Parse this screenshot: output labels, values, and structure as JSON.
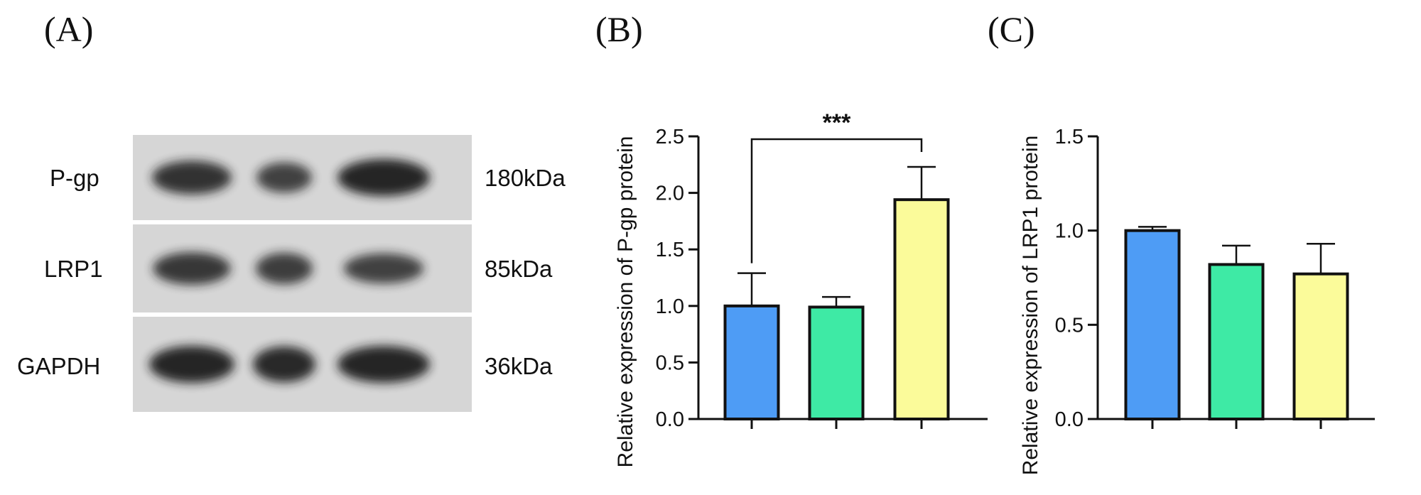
{
  "panels": {
    "a": "(A)",
    "b": "(B)",
    "c": "(C)"
  },
  "blot": {
    "rows": [
      {
        "protein": "P-gp",
        "size": "180kDa",
        "intensities": [
          0.85,
          0.7,
          1.0
        ]
      },
      {
        "protein": "LRP1",
        "size": "85kDa",
        "intensities": [
          0.8,
          0.75,
          0.7
        ]
      },
      {
        "protein": "GAPDH",
        "size": "36kDa",
        "intensities": [
          1.0,
          0.95,
          1.0
        ]
      }
    ]
  },
  "colors": {
    "group1": "#4e9cf5",
    "group2": "#3eeaa5",
    "group3": "#fbfb9a",
    "membrane": "#d6d6d6",
    "band": "#1a1a1a"
  },
  "chart_data": [
    {
      "type": "bar",
      "title": "",
      "xlabel": "",
      "ylabel": "Relative expression of P-gp protein",
      "categories": [
        "",
        "",
        ""
      ],
      "values": [
        1.0,
        0.99,
        1.94
      ],
      "errors": [
        0.29,
        0.09,
        0.29
      ],
      "ylim": [
        0,
        2.5
      ],
      "yticks": [
        0.0,
        0.5,
        1.0,
        1.5,
        2.0,
        2.5
      ],
      "ytick_labels": [
        "0.0",
        "0.5",
        "1.0",
        "1.5",
        "2.0",
        "2.5"
      ],
      "significance": {
        "from": 0,
        "to": 2,
        "label": "***"
      }
    },
    {
      "type": "bar",
      "title": "",
      "xlabel": "",
      "ylabel": "Relative expression of LRP1 protein",
      "categories": [
        "",
        "",
        ""
      ],
      "values": [
        1.0,
        0.82,
        0.77
      ],
      "errors": [
        0.02,
        0.1,
        0.16
      ],
      "ylim": [
        0,
        1.5
      ],
      "yticks": [
        0.0,
        0.5,
        1.0,
        1.5
      ],
      "ytick_labels": [
        "0.0",
        "0.5",
        "1.0",
        "1.5"
      ]
    }
  ]
}
